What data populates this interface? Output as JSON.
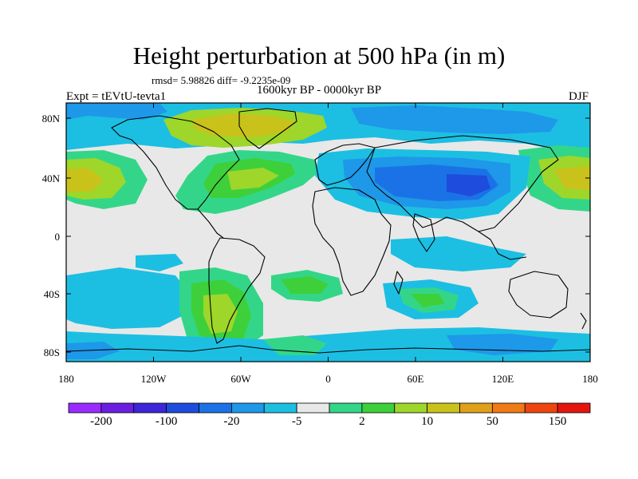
{
  "title": "Height perturbation at 500 hPa (in m)",
  "stats": "rmsd= 5.98826 diff= -9.2235e-09",
  "period": "1600kyr BP - 0000kyr BP",
  "experiment": "Expt = tEVtU-tevta1",
  "season": "DJF",
  "lat_labels": [
    "80N",
    "40N",
    "0",
    "40S",
    "80S"
  ],
  "lon_labels": [
    "180",
    "120W",
    "60W",
    "0",
    "60E",
    "120E",
    "180"
  ],
  "colorbar": {
    "colors": [
      "#9a2bff",
      "#6a1fe0",
      "#3d25d8",
      "#1e4cdc",
      "#1b72e6",
      "#1e98e8",
      "#1cbfe2",
      "#e8e8e8",
      "#33d688",
      "#3dd03a",
      "#9ed62a",
      "#c9c21a",
      "#e0a019",
      "#f07a14",
      "#ee4412",
      "#e3150d"
    ],
    "labels": [
      "-200",
      "-100",
      "-20",
      "-5",
      "2",
      "10",
      "50",
      "150"
    ]
  },
  "palette": {
    "neutral": "#e8e8e8",
    "light_blue": "#1cbfe2",
    "mid_blue": "#1e98e8",
    "blue": "#1b72e6",
    "dark_blue": "#1e4cdc",
    "teal": "#33d688",
    "green": "#3dd03a",
    "lime": "#9ed62a",
    "yellow": "#c9c21a",
    "orange": "#e0a019"
  }
}
